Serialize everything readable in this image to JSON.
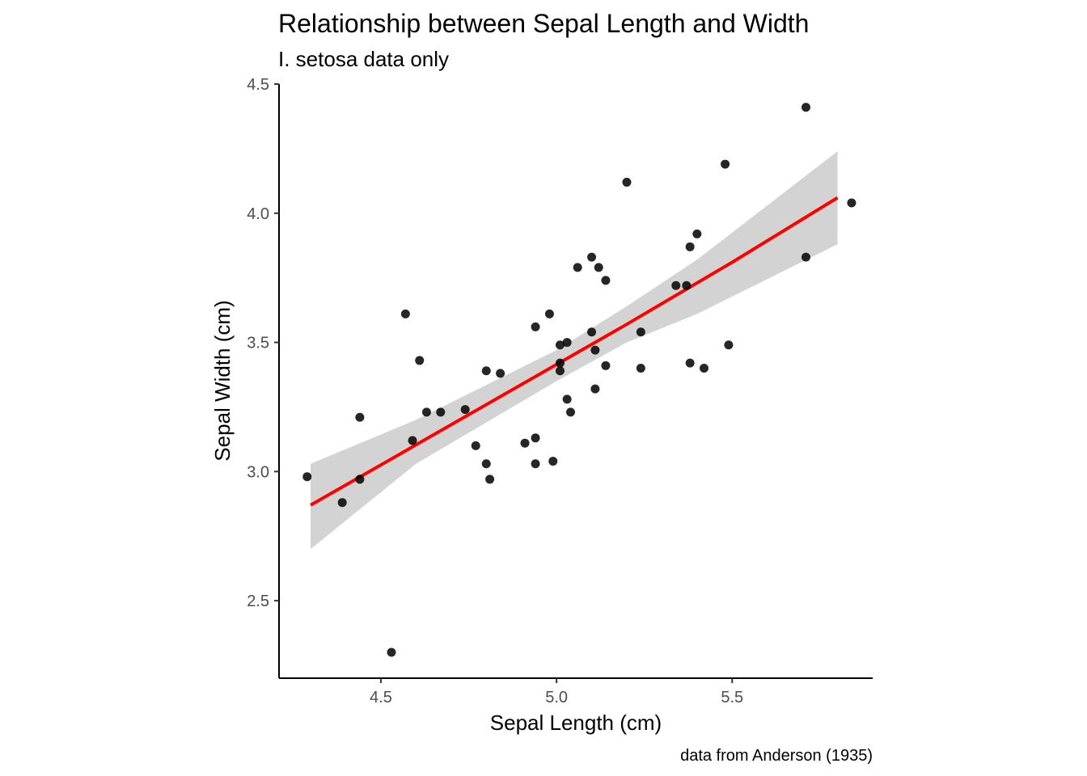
{
  "chart_data": {
    "type": "scatter",
    "title": "Relationship between Sepal Length and Width",
    "subtitle": "I. setosa data only",
    "xlabel": "Sepal Length (cm)",
    "ylabel": "Sepal Width (cm)",
    "caption": "data from Anderson (1935)",
    "xlim": [
      4.21,
      5.9
    ],
    "ylim": [
      2.2,
      4.5
    ],
    "x_ticks": [
      4.5,
      5.0,
      5.5
    ],
    "x_tick_labels": [
      "4.5",
      "5.0",
      "5.5"
    ],
    "y_ticks": [
      2.5,
      3.0,
      3.5,
      4.0,
      4.5
    ],
    "y_tick_labels": [
      "2.5",
      "3.0",
      "3.5",
      "4.0",
      "4.5"
    ],
    "grid": false,
    "legend": "none",
    "point_color": "#000000",
    "points": [
      {
        "x": 4.29,
        "y": 2.98
      },
      {
        "x": 4.39,
        "y": 2.88
      },
      {
        "x": 4.44,
        "y": 3.21
      },
      {
        "x": 4.44,
        "y": 2.97
      },
      {
        "x": 4.53,
        "y": 2.3
      },
      {
        "x": 4.57,
        "y": 3.61
      },
      {
        "x": 4.59,
        "y": 3.12
      },
      {
        "x": 4.61,
        "y": 3.43
      },
      {
        "x": 4.63,
        "y": 3.23
      },
      {
        "x": 4.67,
        "y": 3.23
      },
      {
        "x": 4.74,
        "y": 3.24
      },
      {
        "x": 4.77,
        "y": 3.1
      },
      {
        "x": 4.8,
        "y": 3.03
      },
      {
        "x": 4.8,
        "y": 3.39
      },
      {
        "x": 4.81,
        "y": 2.97
      },
      {
        "x": 4.84,
        "y": 3.38
      },
      {
        "x": 4.91,
        "y": 3.11
      },
      {
        "x": 4.94,
        "y": 3.56
      },
      {
        "x": 4.94,
        "y": 3.13
      },
      {
        "x": 4.94,
        "y": 3.03
      },
      {
        "x": 4.98,
        "y": 3.61
      },
      {
        "x": 4.99,
        "y": 3.04
      },
      {
        "x": 5.01,
        "y": 3.49
      },
      {
        "x": 5.01,
        "y": 3.42
      },
      {
        "x": 5.01,
        "y": 3.39
      },
      {
        "x": 5.03,
        "y": 3.5
      },
      {
        "x": 5.03,
        "y": 3.28
      },
      {
        "x": 5.04,
        "y": 3.23
      },
      {
        "x": 5.06,
        "y": 3.79
      },
      {
        "x": 5.1,
        "y": 3.83
      },
      {
        "x": 5.1,
        "y": 3.54
      },
      {
        "x": 5.11,
        "y": 3.47
      },
      {
        "x": 5.11,
        "y": 3.32
      },
      {
        "x": 5.12,
        "y": 3.79
      },
      {
        "x": 5.14,
        "y": 3.74
      },
      {
        "x": 5.14,
        "y": 3.41
      },
      {
        "x": 5.2,
        "y": 4.12
      },
      {
        "x": 5.24,
        "y": 3.54
      },
      {
        "x": 5.24,
        "y": 3.4
      },
      {
        "x": 5.34,
        "y": 3.72
      },
      {
        "x": 5.37,
        "y": 3.72
      },
      {
        "x": 5.38,
        "y": 3.87
      },
      {
        "x": 5.38,
        "y": 3.42
      },
      {
        "x": 5.4,
        "y": 3.92
      },
      {
        "x": 5.42,
        "y": 3.4
      },
      {
        "x": 5.48,
        "y": 4.19
      },
      {
        "x": 5.49,
        "y": 3.49
      },
      {
        "x": 5.71,
        "y": 4.41
      },
      {
        "x": 5.71,
        "y": 3.83
      },
      {
        "x": 5.84,
        "y": 4.04
      }
    ],
    "trend_line": {
      "method": "linear",
      "color": "#ff0000",
      "x": [
        4.3,
        4.75,
        5.2,
        5.5,
        5.8
      ],
      "y": [
        2.87,
        3.22,
        3.57,
        3.81,
        4.06
      ]
    },
    "confidence_band": {
      "color": "#d3d3d3",
      "x": [
        4.3,
        4.6,
        5.0,
        5.2,
        5.4,
        5.8
      ],
      "lower": [
        2.7,
        3.03,
        3.35,
        3.5,
        3.61,
        3.88
      ],
      "upper": [
        3.03,
        3.2,
        3.47,
        3.64,
        3.82,
        4.24
      ]
    }
  }
}
